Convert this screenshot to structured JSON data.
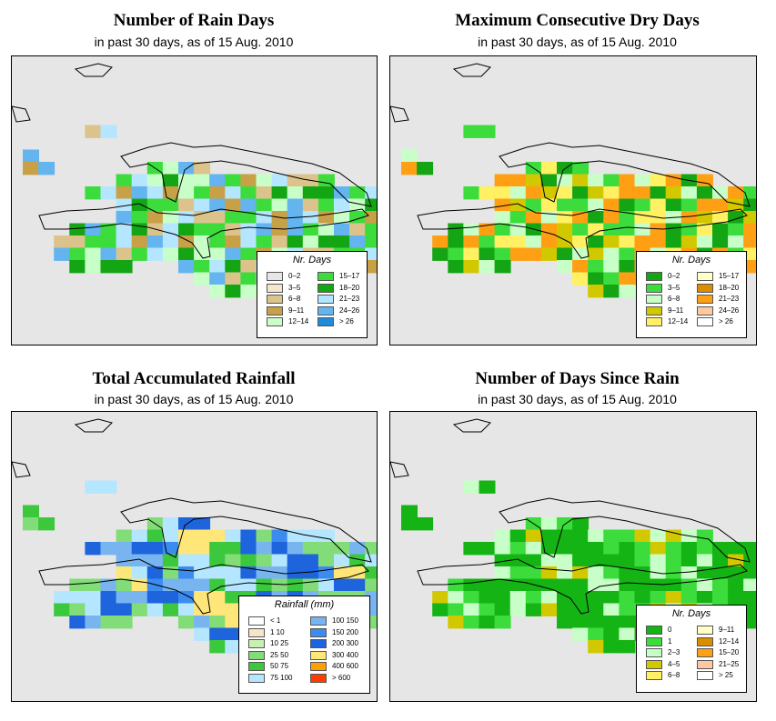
{
  "panels": [
    {
      "id": "rain-days",
      "title": "Number of Rain Days",
      "subtitle": "in past 30 days, as of  15 Aug. 2010",
      "legend": {
        "title": "Nr. Days",
        "items": [
          {
            "label": "0–2",
            "color": "#e6e6e6"
          },
          {
            "label": "3–5",
            "color": "#f2e6cc"
          },
          {
            "label": "6–8",
            "color": "#dcc38c"
          },
          {
            "label": "9–11",
            "color": "#c8a046"
          },
          {
            "label": "12–14",
            "color": "#c8ffc8"
          },
          {
            "label": "15–17",
            "color": "#3cdc3c"
          },
          {
            "label": "18–20",
            "color": "#14a514"
          },
          {
            "label": "21–23",
            "color": "#b4e6ff"
          },
          {
            "label": "24–26",
            "color": "#64b4f0"
          },
          {
            "label": "> 26",
            "color": "#1e8cdc"
          }
        ]
      }
    },
    {
      "id": "max-dry-days",
      "title": "Maximum Consecutive Dry Days",
      "subtitle": "in past 30 days, as of  15 Aug. 2010",
      "legend": {
        "title": "Nr. Days",
        "items": [
          {
            "label": "0–2",
            "color": "#14a514"
          },
          {
            "label": "3–5",
            "color": "#3cdc3c"
          },
          {
            "label": "6–8",
            "color": "#c8ffc8"
          },
          {
            "label": "9–11",
            "color": "#d2c800"
          },
          {
            "label": "12–14",
            "color": "#fff064"
          },
          {
            "label": "15–17",
            "color": "#ffffc8"
          },
          {
            "label": "18–20",
            "color": "#dc8c00"
          },
          {
            "label": "21–23",
            "color": "#ffa014"
          },
          {
            "label": "24–26",
            "color": "#ffc8a0"
          },
          {
            "label": "> 26",
            "color": "#ffffff"
          }
        ]
      }
    },
    {
      "id": "total-rainfall",
      "title": "Total Accumulated Rainfall",
      "subtitle": "in past 30 days, as of  15 Aug. 2010",
      "legend": {
        "title": "Rainfall (mm)",
        "items": [
          {
            "label": "< 1",
            "color": "#ffffff"
          },
          {
            "label": "1   10",
            "color": "#f5e6c8"
          },
          {
            "label": "10   25",
            "color": "#c8f0b4"
          },
          {
            "label": "25   50",
            "color": "#82dc78"
          },
          {
            "label": "50   75",
            "color": "#3cc83c"
          },
          {
            "label": "75   100",
            "color": "#b4e6ff"
          },
          {
            "label": "100   150",
            "color": "#78b4f0"
          },
          {
            "label": "150   200",
            "color": "#3c8cf0"
          },
          {
            "label": "200   300",
            "color": "#1e64dc"
          },
          {
            "label": "300   400",
            "color": "#ffe678"
          },
          {
            "label": "400   600",
            "color": "#ffa000"
          },
          {
            "label": "> 600",
            "color": "#ff3c00"
          }
        ]
      }
    },
    {
      "id": "days-since-rain",
      "title": "Number of Days Since Rain",
      "subtitle": "in past 30 days, as of  15 Aug. 2010",
      "legend": {
        "title": "Nr. Days",
        "items": [
          {
            "label": "0",
            "color": "#14b414"
          },
          {
            "label": "1",
            "color": "#3cdc3c"
          },
          {
            "label": "2–3",
            "color": "#c8ffc8"
          },
          {
            "label": "4–5",
            "color": "#d2c800"
          },
          {
            "label": "6–8",
            "color": "#fff064"
          },
          {
            "label": "9–11",
            "color": "#ffffc8"
          },
          {
            "label": "12–14",
            "color": "#dc8c00"
          },
          {
            "label": "15–20",
            "color": "#ffa014"
          },
          {
            "label": "21–25",
            "color": "#ffc8a0"
          },
          {
            "label": "> 25",
            "color": "#ffffff"
          }
        ]
      }
    }
  ]
}
